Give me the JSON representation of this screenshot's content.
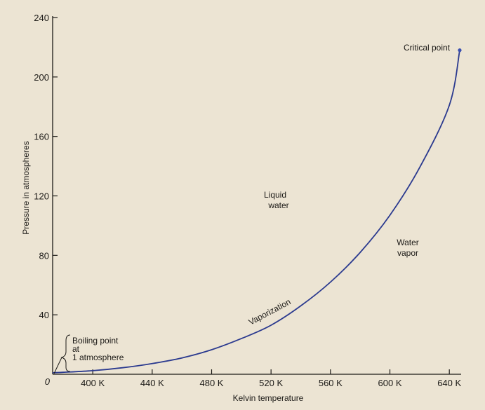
{
  "chart_data": {
    "type": "line",
    "xlabel": "Kelvin temperature",
    "ylabel": "Pressure in atmospheres",
    "xlim": [
      373,
      647
    ],
    "ylim": [
      0,
      240
    ],
    "x_ticks": [
      400,
      440,
      480,
      520,
      560,
      600,
      640
    ],
    "x_tick_labels": [
      "400 K",
      "440 K",
      "480 K",
      "520 K",
      "560 K",
      "600 K",
      "640 K"
    ],
    "y_ticks": [
      0,
      40,
      80,
      120,
      160,
      200,
      240
    ],
    "y_tick_labels": [
      "0",
      "40",
      "80",
      "120",
      "160",
      "200",
      "240"
    ],
    "series": [
      {
        "name": "Vaporization",
        "color": "#2b3a8f",
        "x": [
          373,
          380,
          400,
          420,
          440,
          460,
          480,
          500,
          520,
          540,
          560,
          580,
          600,
          620,
          640,
          647
        ],
        "y": [
          1,
          1.3,
          2.4,
          4.4,
          7.2,
          11,
          16.5,
          24,
          33,
          46,
          62,
          82,
          107,
          139,
          181,
          218
        ]
      }
    ],
    "critical_point": {
      "x": 647,
      "y": 218,
      "label": "Critical point",
      "color": "#3a4fb0"
    },
    "boiling_point": {
      "x": 373,
      "y": 1,
      "label_lines": [
        "Boiling point",
        "at",
        "1 atmosphere"
      ]
    },
    "region_labels": {
      "liquid": [
        "Liquid",
        "water"
      ],
      "vapor": [
        "Water",
        "vapor"
      ]
    },
    "curve_label": "Vaporization",
    "grid": false
  }
}
